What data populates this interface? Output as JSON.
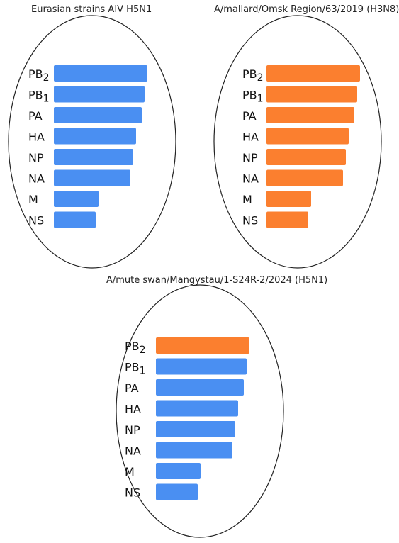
{
  "colors": {
    "blue": "#4a8ff2",
    "orange": "#fb7f2f"
  },
  "panels": [
    {
      "title": "Eurasian strains AIV H5N1",
      "segments": [
        {
          "base": "PB",
          "sub": "2",
          "value": 1.0,
          "color": "blue"
        },
        {
          "base": "PB",
          "sub": "1",
          "value": 0.97,
          "color": "blue"
        },
        {
          "base": "PA",
          "sub": "",
          "value": 0.94,
          "color": "blue"
        },
        {
          "base": "HA",
          "sub": "",
          "value": 0.88,
          "color": "blue"
        },
        {
          "base": "NP",
          "sub": "",
          "value": 0.85,
          "color": "blue"
        },
        {
          "base": "NA",
          "sub": "",
          "value": 0.82,
          "color": "blue"
        },
        {
          "base": "M",
          "sub": "",
          "value": 0.48,
          "color": "blue"
        },
        {
          "base": "NS",
          "sub": "",
          "value": 0.45,
          "color": "blue"
        }
      ]
    },
    {
      "title": "A/mallard/Omsk Region/63/2019 (H3N8)",
      "segments": [
        {
          "base": "PB",
          "sub": "2",
          "value": 1.0,
          "color": "orange"
        },
        {
          "base": "PB",
          "sub": "1",
          "value": 0.97,
          "color": "orange"
        },
        {
          "base": "PA",
          "sub": "",
          "value": 0.94,
          "color": "orange"
        },
        {
          "base": "HA",
          "sub": "",
          "value": 0.88,
          "color": "orange"
        },
        {
          "base": "NP",
          "sub": "",
          "value": 0.85,
          "color": "orange"
        },
        {
          "base": "NA",
          "sub": "",
          "value": 0.82,
          "color": "orange"
        },
        {
          "base": "M",
          "sub": "",
          "value": 0.48,
          "color": "orange"
        },
        {
          "base": "NS",
          "sub": "",
          "value": 0.45,
          "color": "orange"
        }
      ]
    },
    {
      "title": "A/mute swan/Mangystau/1-S24R-2/2024 (H5N1)",
      "segments": [
        {
          "base": "PB",
          "sub": "2",
          "value": 1.0,
          "color": "orange"
        },
        {
          "base": "PB",
          "sub": "1",
          "value": 0.97,
          "color": "blue"
        },
        {
          "base": "PA",
          "sub": "",
          "value": 0.94,
          "color": "blue"
        },
        {
          "base": "HA",
          "sub": "",
          "value": 0.88,
          "color": "blue"
        },
        {
          "base": "NP",
          "sub": "",
          "value": 0.85,
          "color": "blue"
        },
        {
          "base": "NA",
          "sub": "",
          "value": 0.82,
          "color": "blue"
        },
        {
          "base": "M",
          "sub": "",
          "value": 0.48,
          "color": "blue"
        },
        {
          "base": "NS",
          "sub": "",
          "value": 0.45,
          "color": "blue"
        }
      ]
    }
  ]
}
